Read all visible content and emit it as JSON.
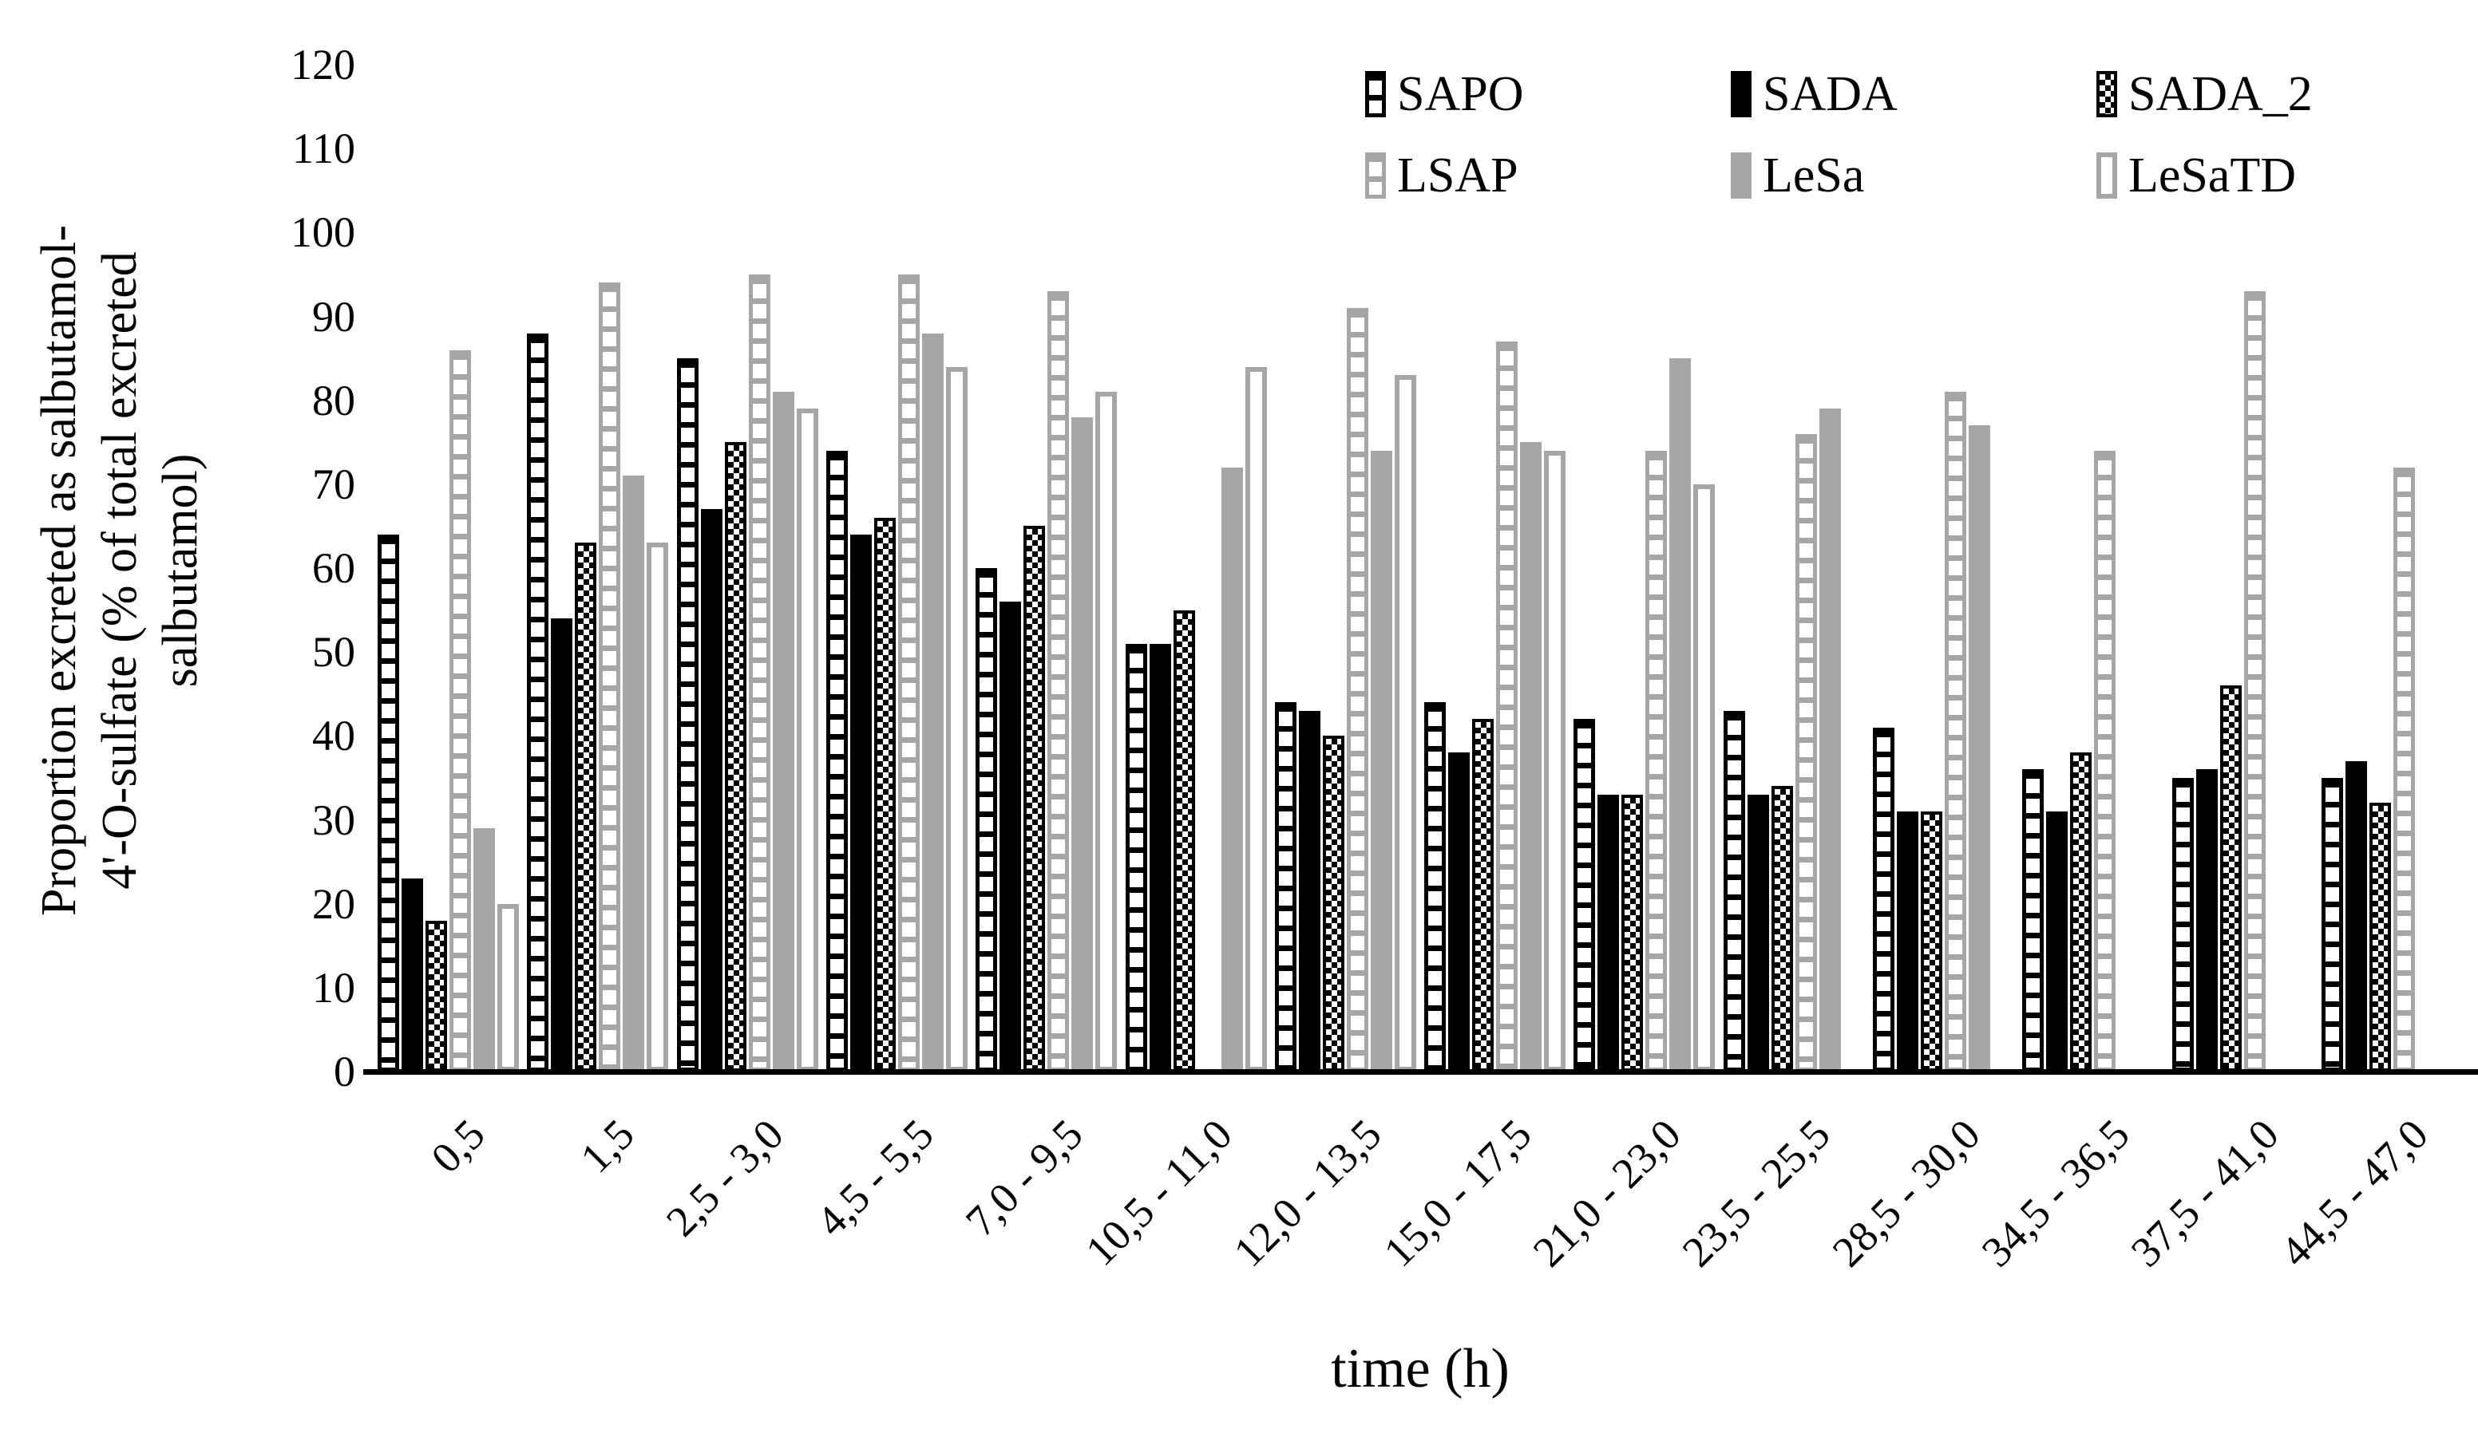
{
  "chart_data": {
    "type": "bar",
    "title": "",
    "xlabel": "time (h)",
    "ylabel": "Proportion excreted as salbutamol-4'-O-sulfate (% of total excreted salbutamol)",
    "ylabel_display": "Proportion excreted as salbutamol-\n4'-O-sulfate (% of total excreted\nsalbutamol)",
    "ylim": [
      0,
      120
    ],
    "ytick_step": 10,
    "ytick_labels": [
      "0",
      "10",
      "20",
      "30",
      "40",
      "50",
      "60",
      "70",
      "80",
      "90",
      "100",
      "110",
      "120"
    ],
    "grid": false,
    "legend_position": "top-right-inside-two-rows",
    "categories": [
      "0,5",
      "1,5",
      "2,5 - 3,0",
      "4,5 - 5,5",
      "7,0 - 9,5",
      "10,5 - 11,0",
      "12,0 - 13,5",
      "15,0 - 17,5",
      "21,0 - 23,0",
      "23,5 - 25,5",
      "28,5 - 30,0",
      "34,5 - 36,5",
      "37,5 - 41,0",
      "44,5 - 47,0"
    ],
    "series": [
      {
        "name": "SAPO",
        "pattern": "black-horizontal-stripes",
        "color": "#000000",
        "values": [
          64,
          88,
          85,
          74,
          60,
          51,
          44,
          44,
          42,
          43,
          41,
          36,
          35,
          35
        ]
      },
      {
        "name": "SADA",
        "pattern": "solid-black",
        "color": "#000000",
        "values": [
          23,
          54,
          67,
          64,
          56,
          51,
          43,
          38,
          33,
          33,
          31,
          31,
          36,
          37
        ]
      },
      {
        "name": "SADA_2",
        "pattern": "black-checkerboard",
        "color": "#000000",
        "values": [
          18,
          63,
          75,
          66,
          65,
          55,
          40,
          42,
          33,
          34,
          31,
          38,
          46,
          32
        ]
      },
      {
        "name": "LSAP",
        "pattern": "gray-horizontal-stripes",
        "color": "#a6a6a6",
        "values": [
          86,
          94,
          95,
          95,
          93,
          null,
          91,
          87,
          74,
          76,
          81,
          74,
          93,
          72
        ]
      },
      {
        "name": "LeSa",
        "pattern": "solid-gray",
        "color": "#a6a6a6",
        "values": [
          29,
          71,
          81,
          88,
          78,
          72,
          74,
          75,
          85,
          79,
          77,
          null,
          null,
          null
        ]
      },
      {
        "name": "LeSaTD",
        "pattern": "white-gray-outline",
        "color": "#a6a6a6",
        "values": [
          20,
          63,
          79,
          84,
          81,
          84,
          83,
          74,
          70,
          null,
          null,
          null,
          null,
          null
        ]
      }
    ],
    "colors": {
      "bar_black": "#000000",
      "bar_gray": "#a6a6a6",
      "background": "#ffffff",
      "text": "#000000"
    }
  }
}
